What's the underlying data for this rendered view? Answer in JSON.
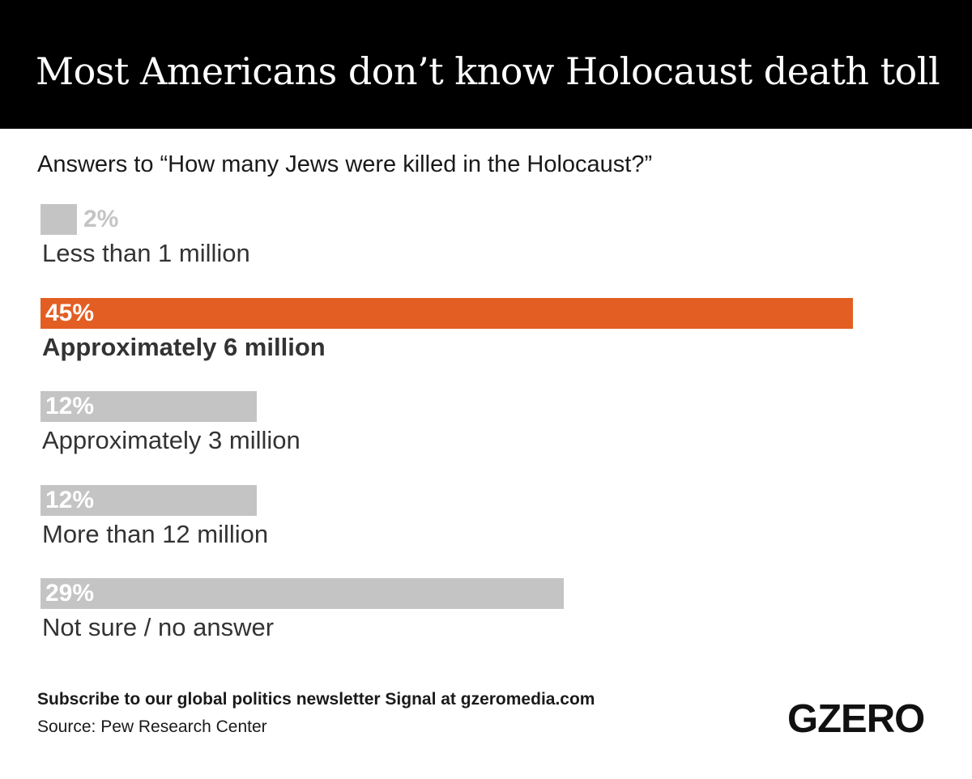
{
  "header": {
    "title": "Most Americans don’t know Holocaust death toll"
  },
  "subtitle": "Answers to “How many Jews were killed in the Holocaust?”",
  "colors": {
    "highlight": "#e35e22",
    "muted": "#c4c4c4",
    "header_bg": "#000000"
  },
  "chart_data": {
    "type": "bar",
    "orientation": "horizontal",
    "categories": [
      "Less than 1 million",
      "Approximately 6 million",
      "Approximately 3 million",
      "More than 12 million",
      "Not sure / no answer"
    ],
    "values": [
      2,
      45,
      12,
      12,
      29
    ],
    "value_labels": [
      "2%",
      "45%",
      "12%",
      "12%",
      "29%"
    ],
    "highlight_index": 1,
    "xlim": [
      0,
      45
    ],
    "grid": false,
    "title": "Most Americans don’t know Holocaust death toll",
    "subtitle": "Answers to “How many Jews were killed in the Holocaust?”",
    "xlabel": "",
    "ylabel": ""
  },
  "footer": {
    "cta": "Subscribe to our global politics newsletter Signal at gzeromedia.com",
    "source": "Source: Pew Research Center",
    "logo": "GZERO"
  }
}
